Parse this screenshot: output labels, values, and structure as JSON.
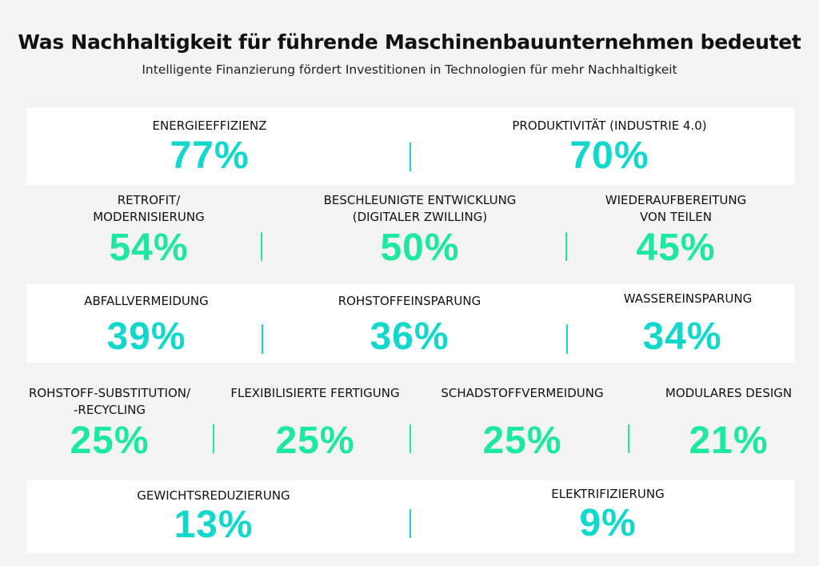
{
  "header": {
    "title": "Was Nachhaltigkeit für führende Maschinenbauunternehmen bedeutet",
    "subtitle": "Intelligente Finanzierung fördert Investitionen in Technologien für mehr Nachhaltigkeit"
  },
  "colors": {
    "background": "#f3f3f3",
    "band": "#ffffff",
    "teal": "#12d8cb",
    "green": "#1de8a2"
  },
  "items": [
    {
      "label": "ENERGIEEFFIZIENZ",
      "value": "77%"
    },
    {
      "label": "PRODUKTIVITÄT (INDUSTRIE 4.0)",
      "value": "70%"
    },
    {
      "label": "RETROFIT/",
      "label2": "MODERNISIERUNG",
      "value": "54%"
    },
    {
      "label": "BESCHLEUNIGTE ENTWICKLUNG",
      "label2": "(DIGITALER ZWILLING)",
      "value": "50%"
    },
    {
      "label": "WIEDERAUFBEREITUNG",
      "label2": "VON TEILEN",
      "value": "45%"
    },
    {
      "label": "ABFALLVERMEIDUNG",
      "value": "39%"
    },
    {
      "label": "ROHSTOFFEINSPARUNG",
      "value": "36%"
    },
    {
      "label": "WASSEREINSPARUNG",
      "value": "34%"
    },
    {
      "label": "ROHSTOFF-SUBSTITUTION/",
      "label2": "-RECYCLING",
      "value": "25%"
    },
    {
      "label": "FLEXIBILISIERTE FERTIGUNG",
      "value": "25%"
    },
    {
      "label": "SCHADSTOFFVERMEIDUNG",
      "value": "25%"
    },
    {
      "label": "MODULARES DESIGN",
      "value": "21%"
    },
    {
      "label": "GEWICHTSREDUZIERUNG",
      "value": "13%"
    },
    {
      "label": "ELEKTRIFIZIERUNG",
      "value": "9%"
    }
  ]
}
